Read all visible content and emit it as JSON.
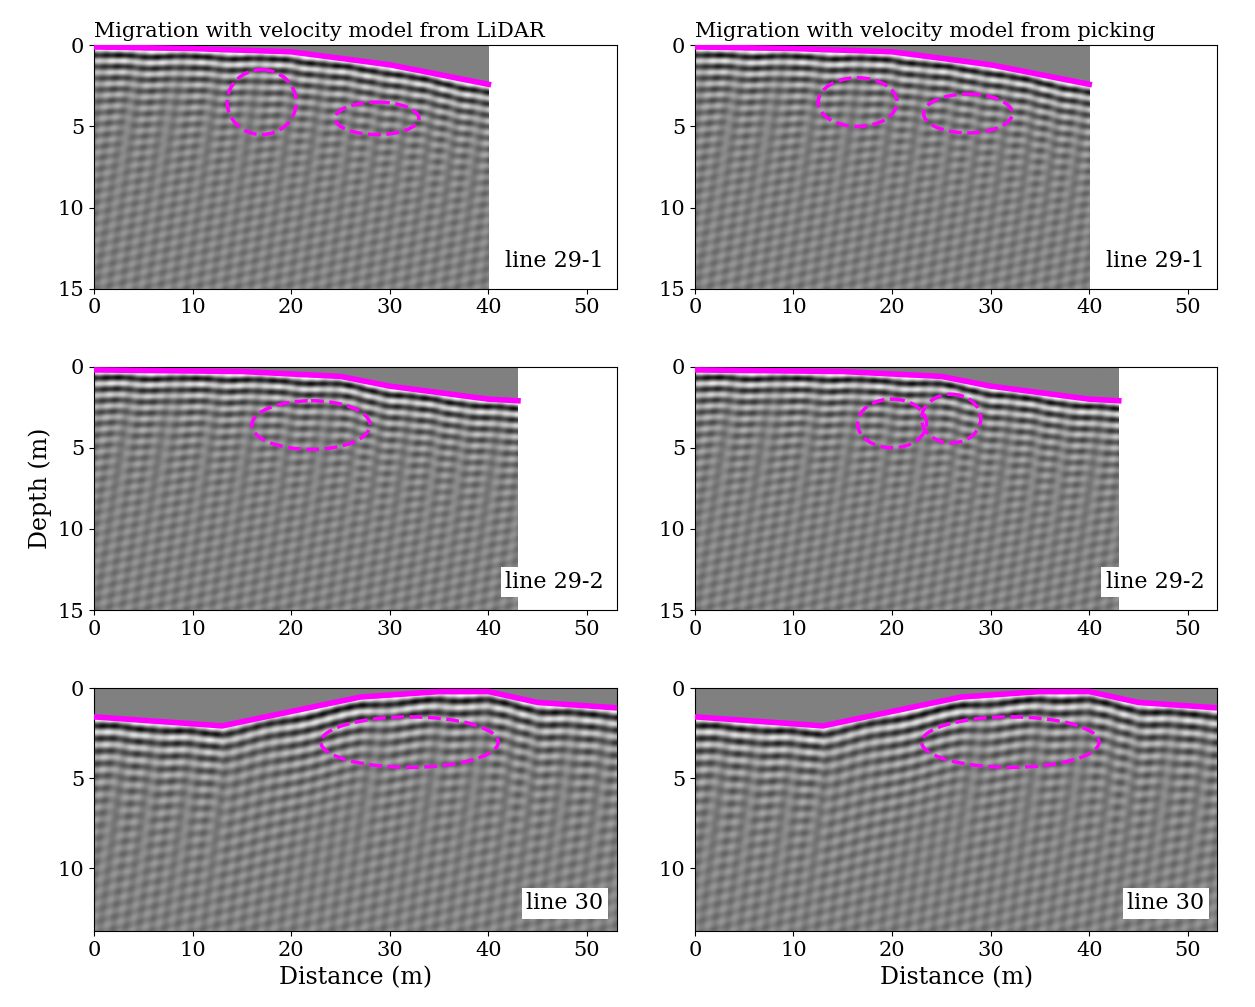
{
  "chart_data": [
    {
      "type": "image",
      "title": "Migration with velocity model from LiDAR",
      "label": "line 29-1",
      "data_extent": 40,
      "xlim": [
        0,
        53
      ],
      "ylim": [
        15,
        0
      ],
      "xticks": [
        0,
        10,
        20,
        30,
        40,
        50
      ],
      "yticks": [
        0,
        5,
        10,
        15
      ],
      "surface": {
        "x": [
          0,
          10,
          20,
          30,
          40
        ],
        "depth": [
          0.1,
          0.2,
          0.4,
          1.2,
          2.4
        ],
        "color": "#ff00ff"
      },
      "anomalies": {
        "color": "#ff00ff",
        "line_style": "dashed",
        "ellipses": [
          {
            "cx": 17,
            "cy": 3.5,
            "width": 7,
            "height": 4
          },
          {
            "cx": 28.7,
            "cy": 4.5,
            "width": 8.5,
            "height": 2
          }
        ]
      }
    },
    {
      "type": "image",
      "title": "Migration with velocity model from picking",
      "label": "line 29-1",
      "data_extent": 40,
      "xlim": [
        0,
        53
      ],
      "ylim": [
        15,
        0
      ],
      "xticks": [
        0,
        10,
        20,
        30,
        40,
        50
      ],
      "yticks": [
        0,
        5,
        10,
        15
      ],
      "surface": {
        "x": [
          0,
          10,
          20,
          30,
          40
        ],
        "depth": [
          0.1,
          0.2,
          0.4,
          1.2,
          2.4
        ],
        "color": "#ff00ff"
      },
      "anomalies": {
        "color": "#ff00ff",
        "line_style": "dashed",
        "ellipses": [
          {
            "cx": 16.5,
            "cy": 3.5,
            "width": 8,
            "height": 3
          },
          {
            "cx": 27.7,
            "cy": 4.2,
            "width": 9,
            "height": 2.4
          }
        ]
      }
    },
    {
      "type": "image",
      "label": "line 29-2",
      "ylabel": "Depth (m)",
      "data_extent": 43,
      "xlim": [
        0,
        53
      ],
      "ylim": [
        15,
        0
      ],
      "xticks": [
        0,
        10,
        20,
        30,
        40,
        50
      ],
      "yticks": [
        0,
        5,
        10,
        15
      ],
      "surface": {
        "x": [
          0,
          15,
          25,
          30,
          40,
          43
        ],
        "depth": [
          0.2,
          0.3,
          0.6,
          1.2,
          2.0,
          2.1
        ],
        "color": "#ff00ff"
      },
      "anomalies": {
        "color": "#ff00ff",
        "line_style": "dashed",
        "ellipses": [
          {
            "cx": 22,
            "cy": 3.6,
            "width": 12,
            "height": 3
          }
        ]
      }
    },
    {
      "type": "image",
      "label": "line 29-2",
      "data_extent": 43,
      "xlim": [
        0,
        53
      ],
      "ylim": [
        15,
        0
      ],
      "xticks": [
        0,
        10,
        20,
        30,
        40,
        50
      ],
      "yticks": [
        0,
        5,
        10,
        15
      ],
      "surface": {
        "x": [
          0,
          15,
          25,
          30,
          40,
          43
        ],
        "depth": [
          0.2,
          0.3,
          0.6,
          1.2,
          2.0,
          2.1
        ],
        "color": "#ff00ff"
      },
      "anomalies": {
        "color": "#ff00ff",
        "line_style": "dashed",
        "ellipses": [
          {
            "cx": 20,
            "cy": 3.5,
            "width": 7,
            "height": 3
          },
          {
            "cx": 26,
            "cy": 3.2,
            "width": 6,
            "height": 3
          }
        ]
      }
    },
    {
      "type": "image",
      "label": "line 30",
      "xlabel": "Distance (m)",
      "data_extent": 53,
      "xlim": [
        0,
        53
      ],
      "ylim": [
        13.5,
        0
      ],
      "xticks": [
        0,
        10,
        20,
        30,
        40,
        50
      ],
      "yticks": [
        0,
        5,
        10
      ],
      "surface": {
        "x": [
          0,
          13,
          20,
          27,
          35,
          40,
          45,
          53
        ],
        "depth": [
          1.6,
          2.1,
          1.3,
          0.5,
          0.2,
          0.2,
          0.8,
          1.1
        ],
        "color": "#ff00ff"
      },
      "anomalies": {
        "color": "#ff00ff",
        "line_style": "dashed",
        "ellipses": [
          {
            "cx": 32,
            "cy": 3,
            "width": 18,
            "height": 2.8
          }
        ]
      }
    },
    {
      "type": "image",
      "label": "line 30",
      "xlabel": "Distance (m)",
      "data_extent": 53,
      "xlim": [
        0,
        53
      ],
      "ylim": [
        13.5,
        0
      ],
      "xticks": [
        0,
        10,
        20,
        30,
        40,
        50
      ],
      "yticks": [
        0,
        5,
        10
      ],
      "surface": {
        "x": [
          0,
          13,
          20,
          27,
          35,
          40,
          45,
          53
        ],
        "depth": [
          1.6,
          2.1,
          1.3,
          0.5,
          0.2,
          0.2,
          0.8,
          1.1
        ],
        "color": "#ff00ff"
      },
      "anomalies": {
        "color": "#ff00ff",
        "line_style": "dashed",
        "ellipses": [
          {
            "cx": 32,
            "cy": 3,
            "width": 18,
            "height": 2.8
          }
        ]
      }
    }
  ]
}
